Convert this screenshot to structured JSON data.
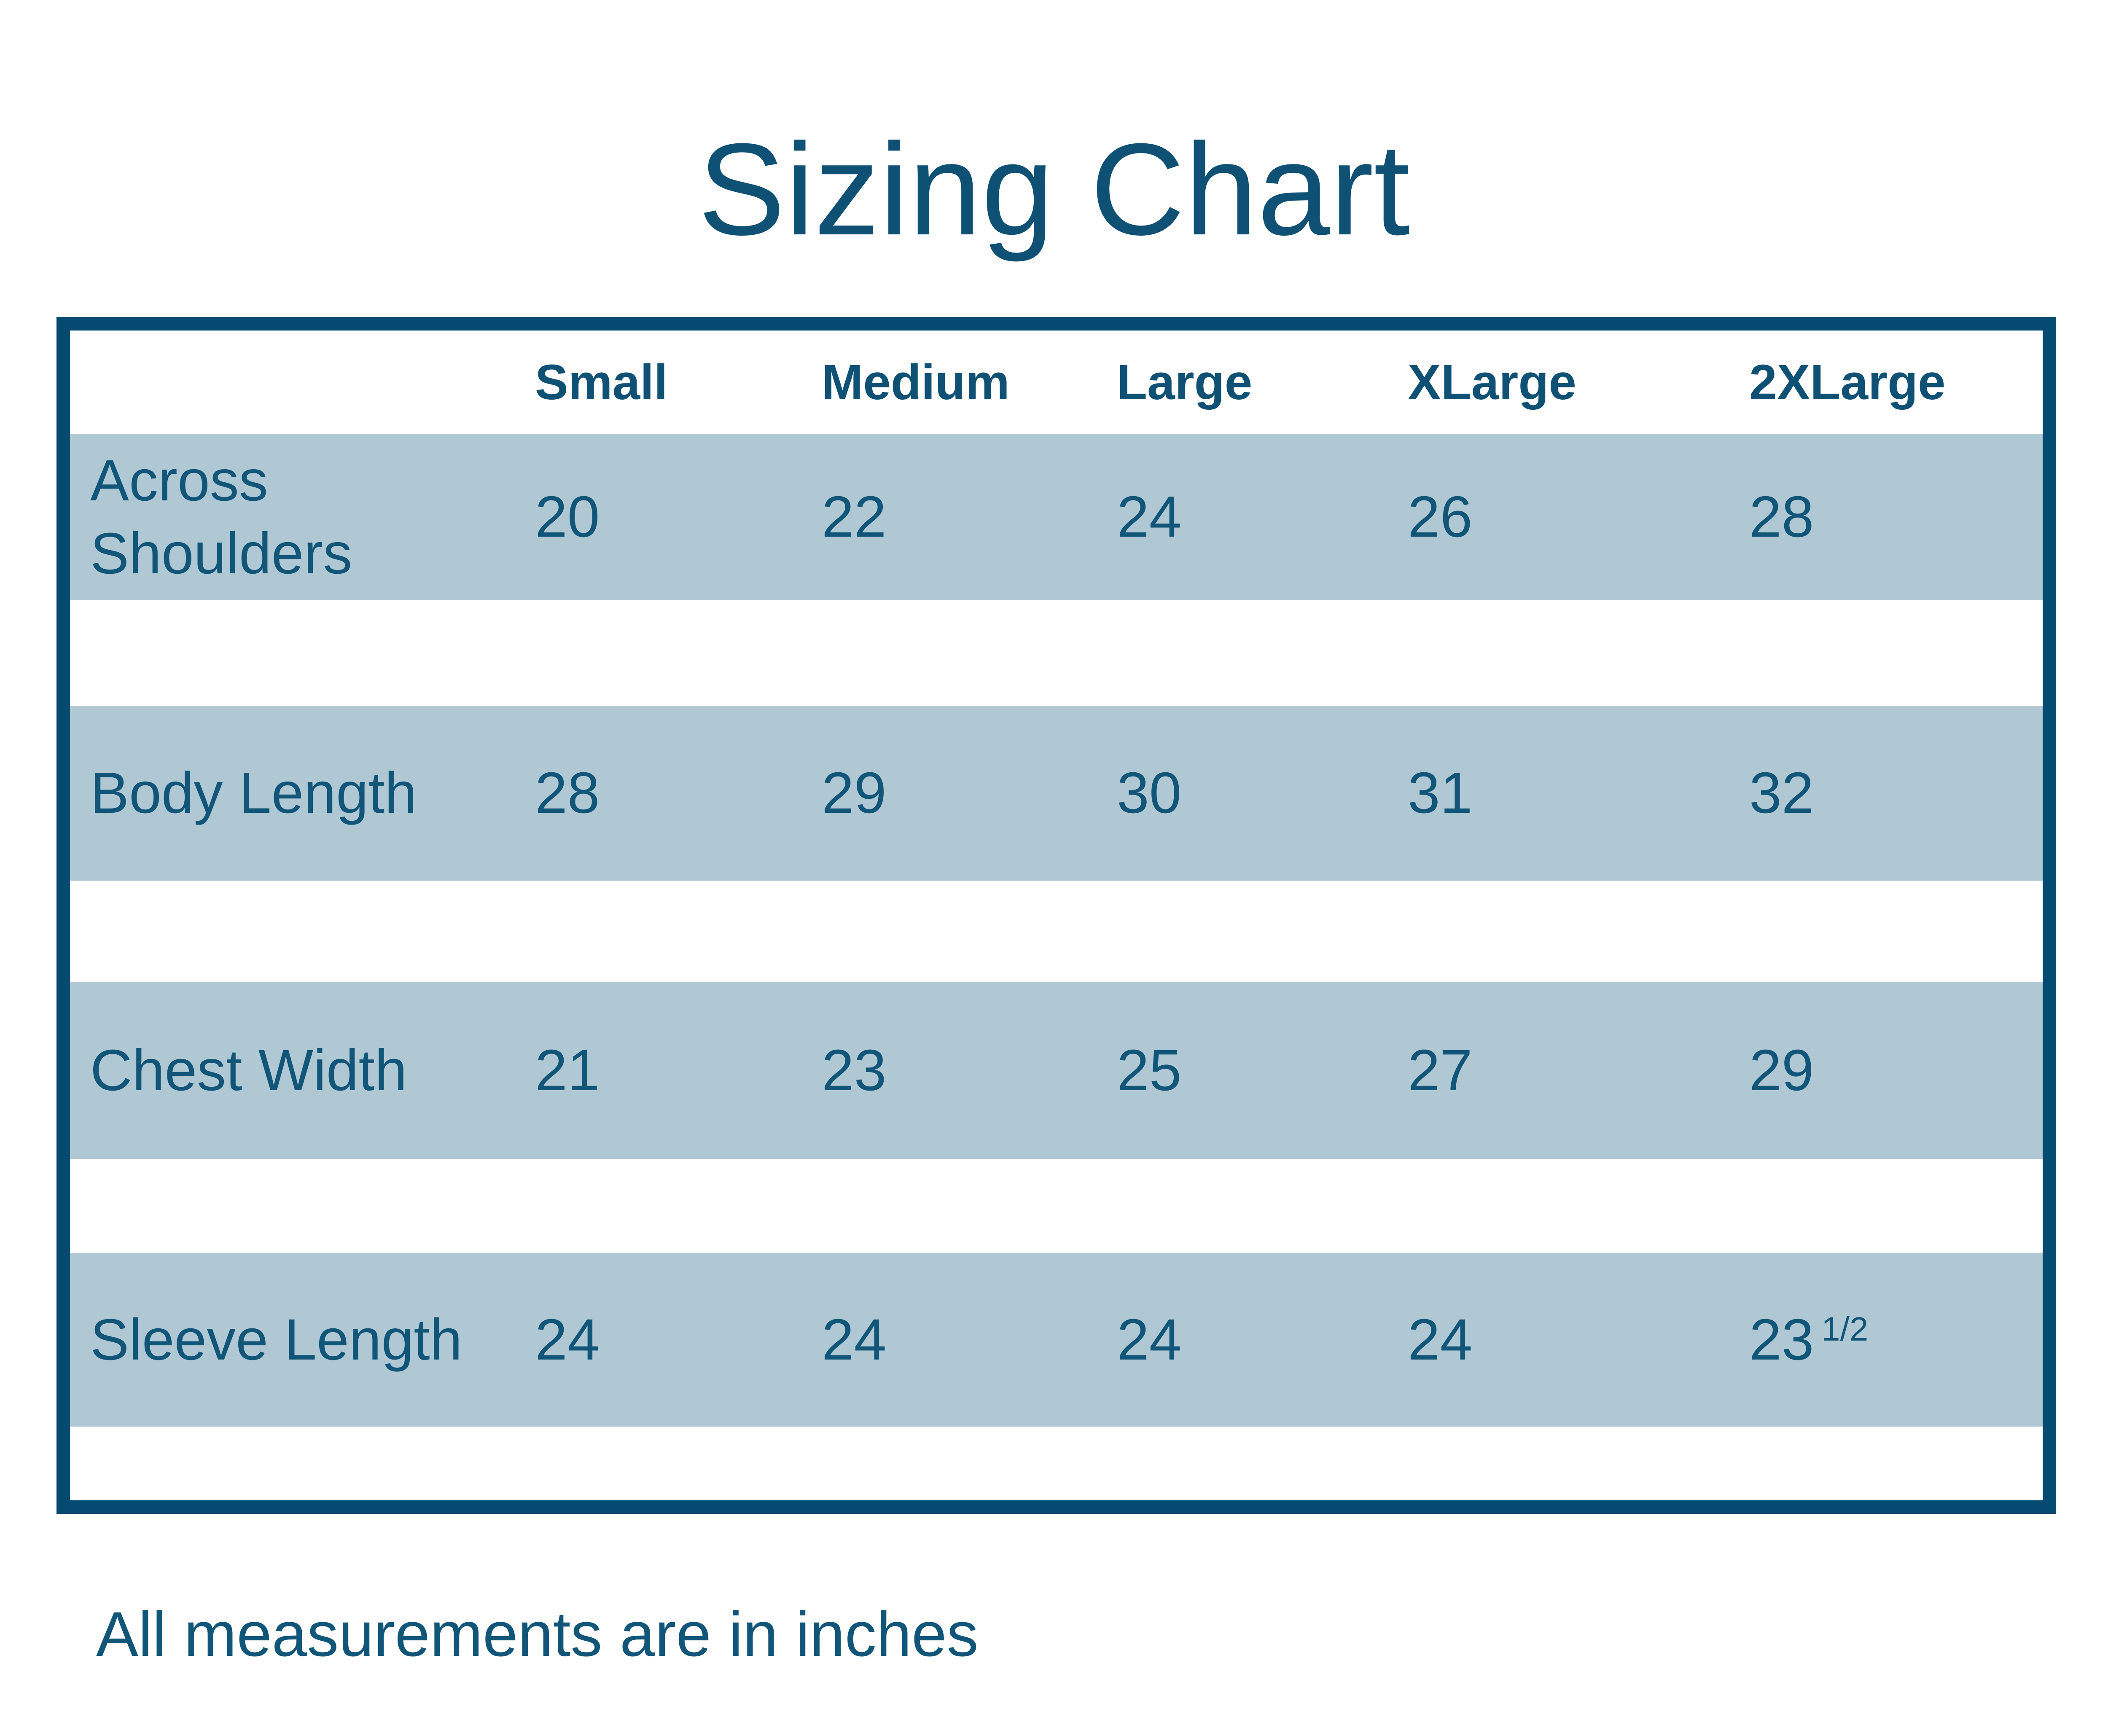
{
  "title": "Sizing Chart",
  "table": {
    "columns": [
      "Small",
      "Medium",
      "Large",
      "XLarge",
      "2XLarge"
    ],
    "rows": [
      {
        "label": "Across Shoulders",
        "values": [
          "20",
          "22",
          "24",
          "26",
          "28"
        ]
      },
      {
        "label": "Body Length",
        "values": [
          "28",
          "29",
          "30",
          "31",
          "32"
        ]
      },
      {
        "label": "Chest Width",
        "values": [
          "21",
          "23",
          "25",
          "27",
          "29"
        ]
      },
      {
        "label": "Sleeve Length",
        "values": [
          "24",
          "24",
          "24",
          "24",
          "23"
        ],
        "sup": "1/2"
      }
    ]
  },
  "footer": "All measurements are in inches",
  "colors": {
    "border": "#054a70",
    "title_text": "#0f5175",
    "table_text": "#115679",
    "row_band": "#b0c8d4",
    "background": "#ffffff"
  },
  "chart_data": {
    "type": "table",
    "title": "Sizing Chart",
    "columns": [
      "Small",
      "Medium",
      "Large",
      "XLarge",
      "2XLarge"
    ],
    "rows": [
      {
        "label": "Across Shoulders",
        "values": [
          20,
          22,
          24,
          26,
          28
        ]
      },
      {
        "label": "Body Length",
        "values": [
          28,
          29,
          30,
          31,
          32
        ]
      },
      {
        "label": "Chest Width",
        "values": [
          21,
          23,
          25,
          27,
          29
        ]
      },
      {
        "label": "Sleeve Length",
        "values": [
          24,
          24,
          24,
          24,
          23.5
        ]
      }
    ],
    "note": "All measurements are in inches",
    "units": "inches"
  }
}
